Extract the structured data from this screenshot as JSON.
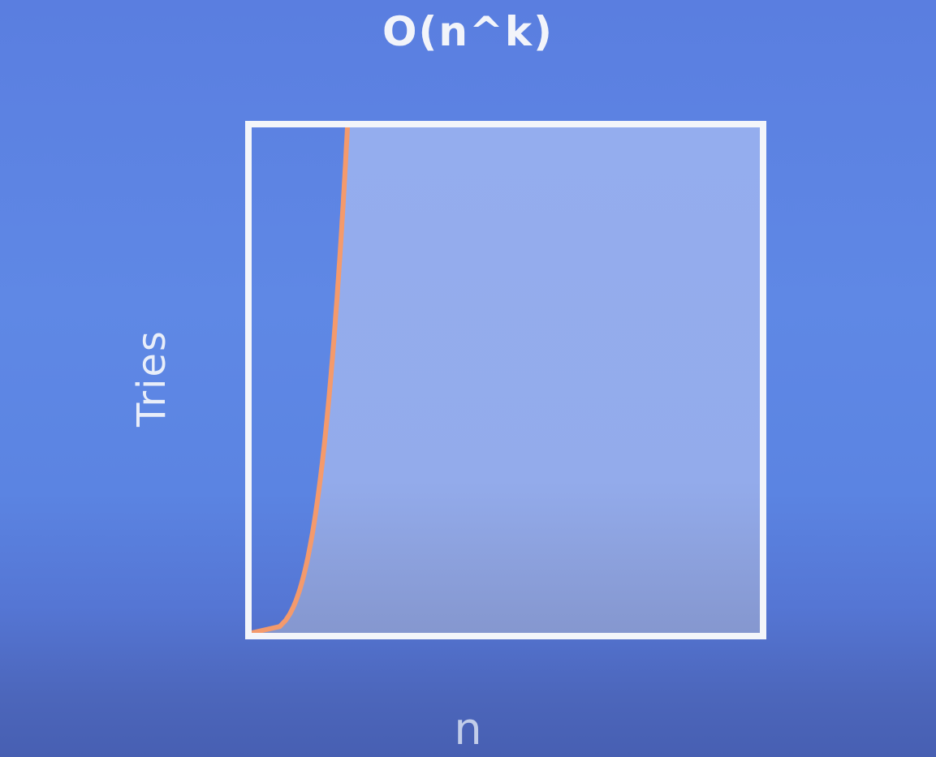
{
  "chart_data": {
    "type": "area",
    "title": "O(n^k)",
    "xlabel": "n",
    "ylabel": "Tries",
    "grid": false,
    "legend": "none",
    "series": [
      {
        "curve": "polynomial",
        "color": "#f49a6c",
        "fill_right_color": "#9bb2ef"
      }
    ]
  }
}
